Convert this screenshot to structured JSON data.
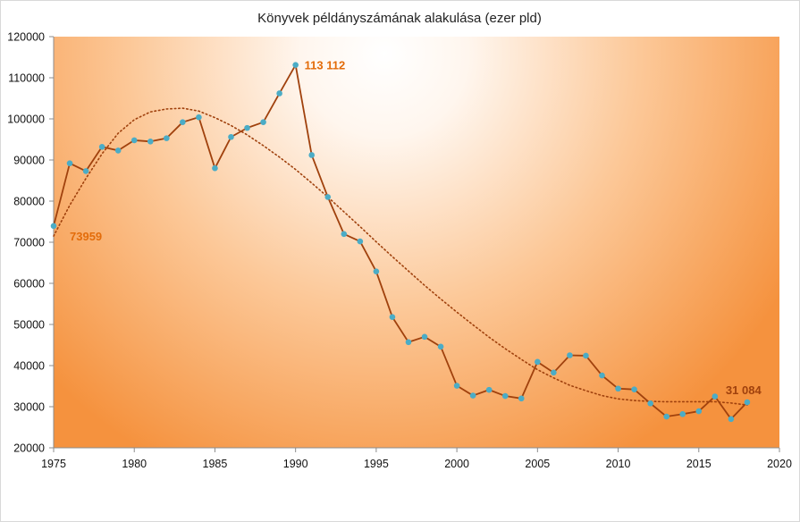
{
  "chart_data": {
    "type": "line",
    "title": "Könyvek példányszámának alakulása (ezer pld)",
    "xlabel": "",
    "ylabel": "",
    "xlim": [
      1975,
      2020
    ],
    "ylim": [
      20000,
      120000
    ],
    "x_ticks": [
      1975,
      1980,
      1985,
      1990,
      1995,
      2000,
      2005,
      2010,
      2015,
      2020
    ],
    "y_ticks": [
      20000,
      30000,
      40000,
      50000,
      60000,
      70000,
      80000,
      90000,
      100000,
      110000,
      120000
    ],
    "grid": false,
    "background": "radial gradient: white (upper middle) to orange (#f5923e) at the edges",
    "series": [
      {
        "style": "line-with-markers",
        "line_color": "#a0410d",
        "marker_color": "#4bacc6",
        "x": [
          1975,
          1976,
          1977,
          1978,
          1979,
          1980,
          1981,
          1982,
          1983,
          1984,
          1985,
          1986,
          1987,
          1988,
          1989,
          1990,
          1991,
          1992,
          1993,
          1994,
          1995,
          1996,
          1997,
          1998,
          1999,
          2000,
          2001,
          2002,
          2003,
          2004,
          2005,
          2006,
          2007,
          2008,
          2009,
          2010,
          2011,
          2012,
          2013,
          2014,
          2015,
          2016,
          2017,
          2018
        ],
        "y": [
          73959,
          89200,
          87300,
          93200,
          92300,
          94800,
          94500,
          95300,
          99200,
          100400,
          88000,
          95600,
          97800,
          99200,
          106200,
          113112,
          91200,
          81000,
          72000,
          70200,
          62900,
          51800,
          45700,
          47000,
          44600,
          35100,
          32700,
          34100,
          32600,
          32000,
          40900,
          38300,
          42500,
          42400,
          37600,
          34400,
          34200,
          30800,
          27600,
          28200,
          28900,
          32500,
          27000,
          31084
        ]
      },
      {
        "style": "dotted-trendline",
        "line_color": "#a0410d",
        "type": "polynomial",
        "x": [
          1975,
          1976,
          1977,
          1978,
          1979,
          1980,
          1981,
          1982,
          1983,
          1984,
          1985,
          1986,
          1987,
          1988,
          1989,
          1990,
          1991,
          1992,
          1993,
          1994,
          1995,
          1996,
          1997,
          1998,
          1999,
          2000,
          2001,
          2002,
          2003,
          2004,
          2005,
          2006,
          2007,
          2008,
          2009,
          2010,
          2011,
          2012,
          2013,
          2014,
          2015,
          2016,
          2017,
          2018
        ],
        "y": [
          71500,
          79000,
          85500,
          91500,
          96500,
          99800,
          101700,
          102400,
          102600,
          101900,
          100300,
          98400,
          96100,
          93500,
          90700,
          87700,
          84400,
          81000,
          77400,
          73800,
          70100,
          66500,
          63000,
          59500,
          56200,
          53000,
          49900,
          46900,
          44100,
          41500,
          39000,
          37000,
          35200,
          33900,
          32700,
          31900,
          31500,
          31300,
          31200,
          31200,
          31200,
          31200,
          30900,
          30400
        ]
      }
    ],
    "annotations": [
      {
        "text": "73959",
        "x": 1975,
        "y": 73959,
        "color": "#e36c0a"
      },
      {
        "text": "113 112",
        "x": 1990,
        "y": 113112,
        "color": "#e36c0a"
      },
      {
        "text": "31 084",
        "x": 2018,
        "y": 31084,
        "color": "#a0410d"
      }
    ]
  }
}
